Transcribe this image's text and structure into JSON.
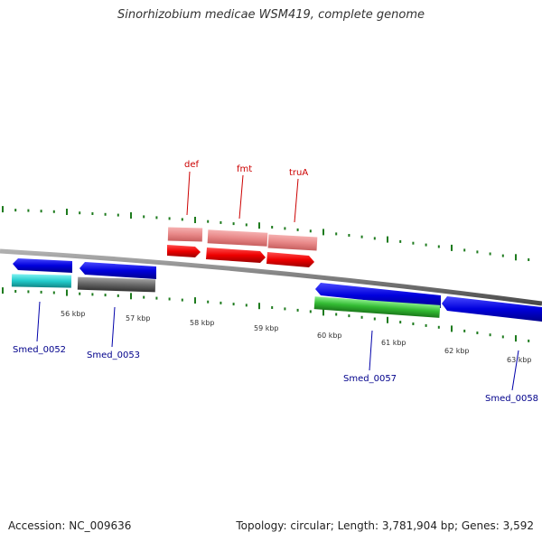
{
  "title": "Sinorhizobium medicae WSM419, complete genome",
  "accession": "Accession: NC_009636",
  "summary": "Topology: circular; Length: 3,781,904 bp; Genes: 3,592",
  "scale_labels": [
    "56 kbp",
    "57 kbp",
    "58 kbp",
    "59 kbp",
    "60 kbp",
    "61 kbp",
    "62 kbp",
    "63 kbp"
  ],
  "forward_gene_labels": [
    "def",
    "fmt",
    "truA"
  ],
  "reverse_gene_labels": [
    "Smed_0052",
    "Smed_0053",
    "Smed_0057",
    "Smed_0058"
  ],
  "colors": {
    "backbone": "#7f7f7f",
    "cds_blue": "#0000dd",
    "cds_red": "#ee0000",
    "feature_pink": "#e88888",
    "feature_cyan": "#22cccc",
    "feature_gray": "#666666",
    "feature_green": "#33bb33",
    "tick_green": "#1e7b1e",
    "label_blue": "#00008b",
    "label_red": "#cc0000"
  }
}
